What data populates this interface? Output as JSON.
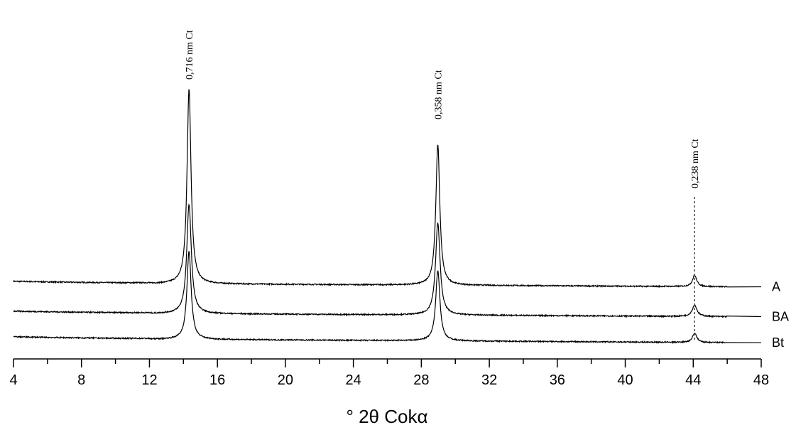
{
  "chart_data": {
    "type": "line",
    "title": "",
    "xlabel": "° 2θ Cokα",
    "ylabel": "",
    "xlim": [
      4,
      48
    ],
    "x_ticks_major": [
      4,
      8,
      12,
      16,
      20,
      24,
      28,
      32,
      36,
      40,
      44,
      48
    ],
    "x_tick_labels": [
      "4",
      "8",
      "12",
      "16",
      "20",
      "24",
      "28",
      "32",
      "36",
      "40",
      "44",
      "48"
    ],
    "x_minor_step": 2,
    "y_axis_visible": false,
    "grid": false,
    "legend": "labels at right end of each trace",
    "series": [
      {
        "name": "A",
        "baseline_start": 100,
        "baseline_end": 80,
        "peaks": [
          {
            "x": 14.33,
            "height": 1000,
            "width": 0.14
          },
          {
            "x": 28.97,
            "height": 720,
            "width": 0.14
          },
          {
            "x": 44.08,
            "height": 58,
            "width": 0.15
          }
        ]
      },
      {
        "name": "BA",
        "baseline_start": 65,
        "baseline_end": 45,
        "peaks": [
          {
            "x": 14.33,
            "height": 560,
            "width": 0.16
          },
          {
            "x": 28.97,
            "height": 470,
            "width": 0.16
          },
          {
            "x": 44.08,
            "height": 58,
            "width": 0.17
          }
        ]
      },
      {
        "name": "Bt",
        "baseline_start": 32,
        "baseline_end": 10,
        "peaks": [
          {
            "x": 14.33,
            "height": 450,
            "width": 0.15
          },
          {
            "x": 28.97,
            "height": 360,
            "width": 0.15
          },
          {
            "x": 44.08,
            "height": 48,
            "width": 0.15
          }
        ]
      }
    ],
    "annotations": [
      {
        "x": 14.33,
        "text": "0,716 nm Ct"
      },
      {
        "x": 28.97,
        "text": "0,358 nm Ct"
      },
      {
        "x": 44.08,
        "text": "0,238 nm Ct",
        "dashed_line": true
      }
    ]
  }
}
